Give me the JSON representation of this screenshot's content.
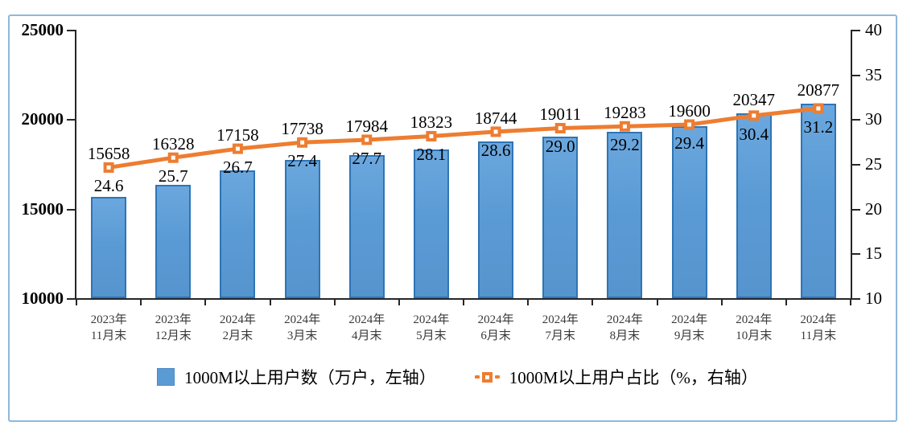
{
  "chart_data": {
    "type": "combo",
    "categories": [
      [
        "2023年",
        "11月末"
      ],
      [
        "2023年",
        "12月末"
      ],
      [
        "2024年",
        "2月末"
      ],
      [
        "2024年",
        "3月末"
      ],
      [
        "2024年",
        "4月末"
      ],
      [
        "2024年",
        "5月末"
      ],
      [
        "2024年",
        "6月末"
      ],
      [
        "2024年",
        "7月末"
      ],
      [
        "2024年",
        "8月末"
      ],
      [
        "2024年",
        "9月末"
      ],
      [
        "2024年",
        "10月末"
      ],
      [
        "2024年",
        "11月末"
      ]
    ],
    "series": [
      {
        "name": "1000M以上用户数（万户，左轴）",
        "type": "bar",
        "axis": "left",
        "unit": "万户",
        "values": [
          15658,
          16328,
          17158,
          17738,
          17984,
          18323,
          18744,
          19011,
          19283,
          19600,
          20347,
          20877
        ],
        "labels": [
          "15658",
          "16328",
          "17158",
          "17738",
          "17984",
          "18323",
          "18744",
          "19011",
          "19283",
          "19600",
          "20347",
          "20877"
        ],
        "color": "#5B9BD5",
        "border_color": "#2E75B6"
      },
      {
        "name": "1000M以上用户占比（%，右轴）",
        "type": "line",
        "axis": "right",
        "unit": "%",
        "values": [
          24.6,
          25.7,
          26.7,
          27.4,
          27.7,
          28.1,
          28.6,
          29.0,
          29.2,
          29.4,
          30.4,
          31.2
        ],
        "labels": [
          "24.6",
          "25.7",
          "26.7",
          "27.4",
          "27.7",
          "28.1",
          "28.6",
          "29.0",
          "29.2",
          "29.4",
          "30.4",
          "31.2"
        ],
        "color": "#ED7D31",
        "marker": "square-hollow"
      }
    ],
    "left_axis": {
      "min": 10000,
      "max": 25000,
      "ticks": [
        10000,
        15000,
        20000,
        25000
      ]
    },
    "right_axis": {
      "min": 10,
      "max": 40,
      "ticks": [
        10,
        15,
        20,
        25,
        30,
        35,
        40
      ]
    },
    "grid": "off",
    "legend_position": "bottom",
    "frame_border_color": "#8DB8DC",
    "axis_color": "#262626"
  },
  "legend": {
    "items": [
      {
        "label": "1000M以上用户数（万户，左轴）"
      },
      {
        "label": "1000M以上用户占比（%，右轴）"
      }
    ]
  }
}
